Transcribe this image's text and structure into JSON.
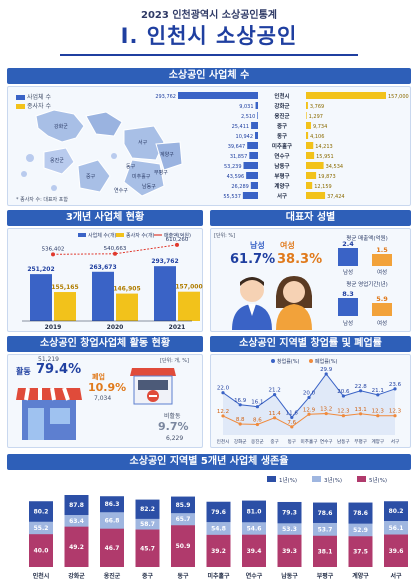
{
  "header": {
    "subtitle": "2023 인천광역시 소상공인통계",
    "title": "I. 인천시 소상공인"
  },
  "sections": {
    "count": "소상공인 사업체 수",
    "trend": "3개년 사업체 현황",
    "gender": "대표자 성별",
    "startup": "소상공인 창업사업체 활동 현황",
    "regional": "소상공인 지역별 창업률 및 폐업률",
    "survival": "소상공인 지역별 5개년 사업체 생존율"
  },
  "count_panel": {
    "legend_firms": "사업체 수",
    "legend_workers": "종사자 수",
    "note": "* 종사자 수: 대표자 포함",
    "map_labels": [
      "강화군",
      "옹진군",
      "서구",
      "계양구",
      "부평구",
      "중구",
      "동구",
      "미추홀구",
      "남동구",
      "연수구"
    ]
  },
  "gender_panel": {
    "unit": "[단위: %]",
    "male_label": "남성",
    "male_pct": "61.7%",
    "female_label": "여성",
    "female_pct": "38.3%",
    "sales_title": "평균 매출액(억원)",
    "sales_male": "2.4",
    "sales_female": "1.5",
    "years_title": "평균 영업기간(년)",
    "years_male": "8.3",
    "years_female": "5.9",
    "male_short": "남성",
    "female_short": "여성"
  },
  "startup_panel": {
    "unit": "[단위: 개, %]",
    "active_label": "활동",
    "active_pct": "79.4%",
    "active_count": "51,219",
    "closed_label": "폐업",
    "closed_pct": "10.9%",
    "closed_count": "7,034",
    "inactive_label": "비활동",
    "inactive_pct": "9.7%",
    "inactive_count": "6,229"
  },
  "chart_data": [
    {
      "type": "bar",
      "orientation": "horizontal",
      "categories": [
        "인천시",
        "강화군",
        "옹진군",
        "중구",
        "동구",
        "미추홀구",
        "연수구",
        "남동구",
        "부평구",
        "계양구",
        "서구"
      ],
      "series": [
        {
          "name": "사업체 수",
          "values": [
            293762,
            9031,
            2510,
            25411,
            10942,
            39647,
            31857,
            53239,
            43596,
            26289,
            55537
          ],
          "color": "#3a63c6"
        },
        {
          "name": "종사자 수",
          "values": [
            157000,
            3769,
            1297,
            9734,
            4106,
            14213,
            15951,
            34534,
            19873,
            12159,
            37424
          ],
          "color": "#f2c21b"
        }
      ]
    },
    {
      "type": "bar",
      "categories": [
        "2019",
        "2020",
        "2021"
      ],
      "series": [
        {
          "name": "사업체 수(개)",
          "values": [
            251202,
            263673,
            293762
          ],
          "color": "#3a63c6"
        },
        {
          "name": "종사자 수(개)",
          "values": [
            155165,
            146905,
            157000
          ],
          "color": "#f2c21b"
        },
        {
          "name": "매출액(억원)",
          "values": [
            536402,
            540663,
            610260
          ],
          "color": "#e0392d",
          "type": "line"
        }
      ]
    },
    {
      "type": "line",
      "categories": [
        "인천시",
        "강화군",
        "옹진군",
        "중구",
        "동구",
        "미추홀구",
        "연수구",
        "남동구",
        "부평구",
        "계양구",
        "서구"
      ],
      "series": [
        {
          "name": "창업률(%)",
          "values": [
            22.0,
            16.9,
            16.1,
            21.2,
            11.6,
            20.0,
            29.9,
            20.6,
            22.8,
            21.1,
            23.6
          ],
          "color": "#3a63c6"
        },
        {
          "name": "폐업률(%)",
          "values": [
            12.2,
            8.8,
            8.6,
            11.4,
            7.6,
            12.9,
            13.2,
            12.3,
            13.1,
            12.3,
            12.3
          ],
          "color": "#f08a3c"
        }
      ]
    },
    {
      "type": "bar",
      "stacked": true,
      "categories": [
        "인천시",
        "강화군",
        "옹진군",
        "중구",
        "동구",
        "미추홀구",
        "연수구",
        "남동구",
        "부평구",
        "계양구",
        "서구"
      ],
      "series": [
        {
          "name": "1년(%)",
          "values": [
            80.2,
            87.8,
            86.3,
            82.2,
            85.9,
            79.6,
            81.0,
            79.3,
            78.6,
            78.6,
            80.2
          ],
          "color": "#2c4fa6"
        },
        {
          "name": "3년(%)",
          "values": [
            55.2,
            63.4,
            66.8,
            58.7,
            65.7,
            54.8,
            54.6,
            53.3,
            53.7,
            52.9,
            56.1
          ],
          "color": "#9fb6e0"
        },
        {
          "name": "5년(%)",
          "values": [
            40.0,
            49.2,
            46.7,
            45.7,
            50.9,
            39.2,
            39.4,
            39.3,
            38.1,
            37.5,
            39.6
          ],
          "color": "#b03a6c"
        }
      ]
    }
  ]
}
